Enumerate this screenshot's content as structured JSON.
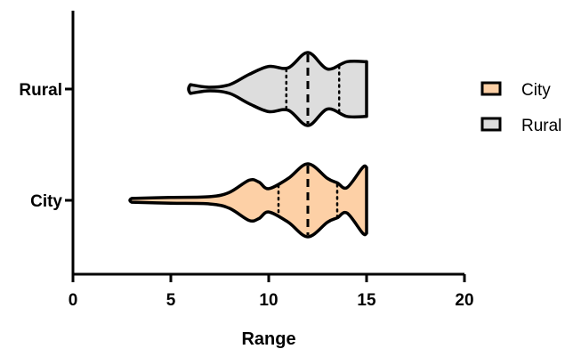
{
  "chart_data": {
    "type": "violin",
    "orientation": "horizontal",
    "title": "",
    "xlabel": "Range",
    "ylabel": "",
    "xlim": [
      0,
      20
    ],
    "x_ticks": [
      "0",
      "5",
      "10",
      "15",
      "20"
    ],
    "categories": [
      "Rural",
      "City"
    ],
    "grid": false,
    "legend": {
      "position": "right"
    },
    "series": [
      {
        "name": "City",
        "color": "#FDD0A6",
        "range": [
          3,
          15
        ],
        "quartiles": [
          10.5,
          12,
          13.5
        ],
        "density": [
          [
            3,
            0.05
          ],
          [
            5,
            0.08
          ],
          [
            7,
            0.1
          ],
          [
            8,
            0.22
          ],
          [
            9,
            0.55
          ],
          [
            9.5,
            0.5
          ],
          [
            10,
            0.32
          ],
          [
            11,
            0.6
          ],
          [
            12,
            1.0
          ],
          [
            13,
            0.6
          ],
          [
            13.5,
            0.48
          ],
          [
            14,
            0.35
          ],
          [
            14.8,
            0.9
          ],
          [
            15,
            0.9
          ]
        ]
      },
      {
        "name": "Rural",
        "color": "#DDDDDD",
        "range": [
          6,
          15
        ],
        "quartiles": [
          10.9,
          12,
          13.6
        ],
        "density": [
          [
            6,
            0.12
          ],
          [
            7,
            0.05
          ],
          [
            8,
            0.12
          ],
          [
            9,
            0.4
          ],
          [
            10,
            0.62
          ],
          [
            11,
            0.58
          ],
          [
            12,
            1.0
          ],
          [
            13,
            0.55
          ],
          [
            14,
            0.75
          ],
          [
            15,
            0.75
          ]
        ]
      }
    ]
  }
}
